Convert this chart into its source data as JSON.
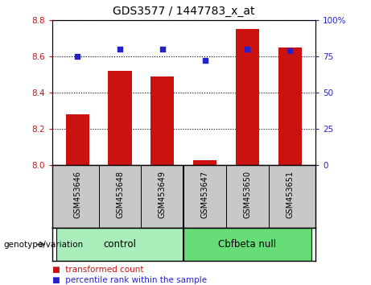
{
  "title": "GDS3577 / 1447783_x_at",
  "categories": [
    "GSM453646",
    "GSM453648",
    "GSM453649",
    "GSM453647",
    "GSM453650",
    "GSM453651"
  ],
  "bar_values": [
    8.28,
    8.52,
    8.49,
    8.03,
    8.75,
    8.65
  ],
  "dot_values": [
    75,
    80,
    80,
    72,
    80,
    79
  ],
  "bar_baseline": 8.0,
  "ylim_left": [
    8.0,
    8.8
  ],
  "ylim_right": [
    0,
    100
  ],
  "yticks_left": [
    8.0,
    8.2,
    8.4,
    8.6,
    8.8
  ],
  "yticks_right": [
    0,
    25,
    50,
    75,
    100
  ],
  "ytick_labels_right": [
    "0",
    "25",
    "50",
    "75",
    "100%"
  ],
  "bar_color": "#cc1111",
  "dot_color": "#2222cc",
  "groups": [
    {
      "label": "control",
      "indices": [
        0,
        1,
        2
      ],
      "color": "#aaeebb"
    },
    {
      "label": "Cbfbeta null",
      "indices": [
        3,
        4,
        5
      ],
      "color": "#66dd77"
    }
  ],
  "xlabel_area_color": "#c8c8c8",
  "legend_items": [
    {
      "color": "#cc1111",
      "label": "transformed count"
    },
    {
      "color": "#2222cc",
      "label": "percentile rank within the sample"
    }
  ],
  "genotype_label": "genotype/variation",
  "bar_width": 0.55
}
